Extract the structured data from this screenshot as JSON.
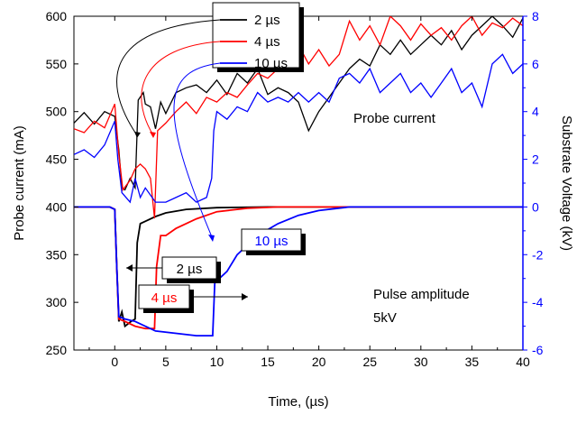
{
  "chart_data": {
    "type": "line",
    "xlabel": "Time, (µs)",
    "ylabel_left": "Probe current (mA)",
    "ylabel_right": "Substrate Voltage  (kV)",
    "xlim": [
      -4,
      40
    ],
    "ylim_left": [
      250,
      600
    ],
    "ylim_right": [
      -6,
      8
    ],
    "x_ticks": [
      "0",
      "5",
      "10",
      "15",
      "20",
      "25",
      "30",
      "35",
      "40"
    ],
    "y_ticks_left": [
      "250",
      "300",
      "350",
      "400",
      "450",
      "500",
      "550",
      "600"
    ],
    "y_ticks_right": [
      "-6",
      "-4",
      "-2",
      "0",
      "2",
      "4",
      "6",
      "8"
    ],
    "legend_position": "top-center",
    "annotations": {
      "probe_current": "Probe current",
      "pulse_amplitude_line1": "Pulse amplitude",
      "pulse_amplitude_line2": "5kV"
    },
    "colors": {
      "2us": "#000000",
      "4us": "#ff0000",
      "10us": "#0000ff",
      "right_axis": "#0000ff"
    },
    "series": [
      {
        "name": "2 µs",
        "color": "#000000",
        "current_mA": [
          [
            -4,
            488
          ],
          [
            -3,
            499
          ],
          [
            -2,
            487
          ],
          [
            -1,
            500
          ],
          [
            0,
            495
          ],
          [
            0.4,
            460
          ],
          [
            0.7,
            420
          ],
          [
            1,
            418
          ],
          [
            1.5,
            430
          ],
          [
            2,
            420
          ],
          [
            2.3,
            512
          ],
          [
            2.8,
            520
          ],
          [
            3,
            508
          ],
          [
            3.5,
            505
          ],
          [
            4,
            482
          ],
          [
            4.5,
            510
          ],
          [
            5,
            498
          ],
          [
            6,
            520
          ],
          [
            7,
            525
          ],
          [
            8,
            528
          ],
          [
            9,
            520
          ],
          [
            10,
            533
          ],
          [
            11,
            518
          ],
          [
            12,
            540
          ],
          [
            13,
            530
          ],
          [
            14,
            545
          ],
          [
            15,
            518
          ],
          [
            16,
            525
          ],
          [
            17,
            520
          ],
          [
            18,
            510
          ],
          [
            19,
            480
          ],
          [
            20,
            500
          ],
          [
            21,
            515
          ],
          [
            22,
            530
          ],
          [
            23,
            545
          ],
          [
            24,
            555
          ],
          [
            25,
            548
          ],
          [
            26,
            570
          ],
          [
            27,
            560
          ],
          [
            28,
            575
          ],
          [
            29,
            560
          ],
          [
            30,
            570
          ],
          [
            31,
            580
          ],
          [
            32,
            570
          ],
          [
            33,
            585
          ],
          [
            34,
            565
          ],
          [
            35,
            580
          ],
          [
            36,
            590
          ],
          [
            37,
            600
          ],
          [
            38,
            590
          ],
          [
            39,
            578
          ],
          [
            40,
            598
          ]
        ],
        "voltage_kV": [
          [
            -4,
            0
          ],
          [
            -0.5,
            0
          ],
          [
            0,
            -0.1
          ],
          [
            0.2,
            -2.5
          ],
          [
            0.4,
            -4.8
          ],
          [
            0.7,
            -4.4
          ],
          [
            1,
            -5
          ],
          [
            1.6,
            -4.8
          ],
          [
            2,
            -4.7
          ],
          [
            2.2,
            -1.5
          ],
          [
            2.5,
            -0.7
          ],
          [
            3,
            -0.6
          ],
          [
            4,
            -0.4
          ],
          [
            5,
            -0.25
          ],
          [
            7,
            -0.1
          ],
          [
            10,
            -0.03
          ],
          [
            15,
            0
          ],
          [
            40,
            0
          ]
        ]
      },
      {
        "name": "4 µs",
        "color": "#ff0000",
        "current_mA": [
          [
            -4,
            482
          ],
          [
            -3,
            478
          ],
          [
            -2,
            490
          ],
          [
            -1,
            483
          ],
          [
            0,
            508
          ],
          [
            0.4,
            455
          ],
          [
            0.8,
            418
          ],
          [
            1.5,
            428
          ],
          [
            2,
            440
          ],
          [
            2.5,
            445
          ],
          [
            3,
            440
          ],
          [
            3.5,
            430
          ],
          [
            3.9,
            388
          ],
          [
            4.2,
            480
          ],
          [
            5,
            488
          ],
          [
            6,
            500
          ],
          [
            7,
            510
          ],
          [
            8,
            498
          ],
          [
            9,
            515
          ],
          [
            10,
            510
          ],
          [
            11,
            520
          ],
          [
            12,
            515
          ],
          [
            13,
            528
          ],
          [
            14,
            540
          ],
          [
            15,
            535
          ],
          [
            16,
            545
          ],
          [
            17,
            560
          ],
          [
            18,
            570
          ],
          [
            19,
            550
          ],
          [
            20,
            565
          ],
          [
            21,
            548
          ],
          [
            22,
            560
          ],
          [
            23,
            595
          ],
          [
            24,
            575
          ],
          [
            25,
            590
          ],
          [
            26,
            570
          ],
          [
            27,
            600
          ],
          [
            28,
            590
          ],
          [
            29,
            575
          ],
          [
            30,
            592
          ],
          [
            31,
            580
          ],
          [
            32,
            588
          ],
          [
            33,
            575
          ],
          [
            34,
            590
          ],
          [
            35,
            600
          ],
          [
            36,
            580
          ],
          [
            37,
            593
          ],
          [
            38,
            588
          ],
          [
            39,
            598
          ],
          [
            40,
            590
          ]
        ],
        "voltage_kV": [
          [
            -4,
            0
          ],
          [
            -0.5,
            0
          ],
          [
            0,
            -0.1
          ],
          [
            0.2,
            -2.5
          ],
          [
            0.4,
            -4.7
          ],
          [
            1,
            -4.8
          ],
          [
            2,
            -5
          ],
          [
            3,
            -5.1
          ],
          [
            3.9,
            -5.1
          ],
          [
            4.1,
            -2.5
          ],
          [
            4.5,
            -1.2
          ],
          [
            5,
            -1.2
          ],
          [
            6,
            -0.9
          ],
          [
            8,
            -0.5
          ],
          [
            10,
            -0.2
          ],
          [
            13,
            -0.05
          ],
          [
            16,
            0
          ],
          [
            40,
            0
          ]
        ]
      },
      {
        "name": "10 µs",
        "color": "#0000ff",
        "current_mA": [
          [
            -4,
            455
          ],
          [
            -3,
            460
          ],
          [
            -2,
            452
          ],
          [
            -1,
            465
          ],
          [
            0,
            490
          ],
          [
            0.3,
            450
          ],
          [
            0.7,
            415
          ],
          [
            1.5,
            405
          ],
          [
            2,
            430
          ],
          [
            2.5,
            410
          ],
          [
            3,
            420
          ],
          [
            4,
            405
          ],
          [
            5,
            405
          ],
          [
            6,
            410
          ],
          [
            7,
            415
          ],
          [
            8,
            405
          ],
          [
            9,
            410
          ],
          [
            9.5,
            430
          ],
          [
            9.7,
            480
          ],
          [
            10,
            500
          ],
          [
            11,
            492
          ],
          [
            12,
            505
          ],
          [
            13,
            500
          ],
          [
            14,
            520
          ],
          [
            15,
            510
          ],
          [
            16,
            515
          ],
          [
            17,
            510
          ],
          [
            18,
            520
          ],
          [
            19,
            510
          ],
          [
            20,
            520
          ],
          [
            21,
            510
          ],
          [
            22,
            535
          ],
          [
            23,
            540
          ],
          [
            24,
            530
          ],
          [
            25,
            545
          ],
          [
            26,
            520
          ],
          [
            27,
            530
          ],
          [
            28,
            540
          ],
          [
            29,
            520
          ],
          [
            30,
            530
          ],
          [
            31,
            515
          ],
          [
            32,
            530
          ],
          [
            33,
            545
          ],
          [
            34,
            520
          ],
          [
            35,
            530
          ],
          [
            36,
            505
          ],
          [
            37,
            550
          ],
          [
            38,
            560
          ],
          [
            39,
            540
          ],
          [
            40,
            550
          ]
        ],
        "voltage_kV": [
          [
            -4,
            0
          ],
          [
            -0.5,
            0
          ],
          [
            0,
            -0.1
          ],
          [
            0.2,
            -2.5
          ],
          [
            0.4,
            -4.6
          ],
          [
            1,
            -4.7
          ],
          [
            2,
            -4.8
          ],
          [
            4,
            -5.2
          ],
          [
            6,
            -5.3
          ],
          [
            8,
            -5.4
          ],
          [
            9.6,
            -5.4
          ],
          [
            9.8,
            -3.2
          ],
          [
            10,
            -3.1
          ],
          [
            11,
            -2.7
          ],
          [
            12,
            -2
          ],
          [
            14,
            -1.2
          ],
          [
            16,
            -0.7
          ],
          [
            18,
            -0.35
          ],
          [
            20,
            -0.15
          ],
          [
            23,
            0
          ],
          [
            40,
            0
          ]
        ]
      }
    ],
    "callouts": [
      {
        "series": "2 µs",
        "label": "2 µs"
      },
      {
        "series": "4 µs",
        "label": "4 µs"
      },
      {
        "series": "10 µs",
        "label": "10 µs"
      }
    ]
  }
}
